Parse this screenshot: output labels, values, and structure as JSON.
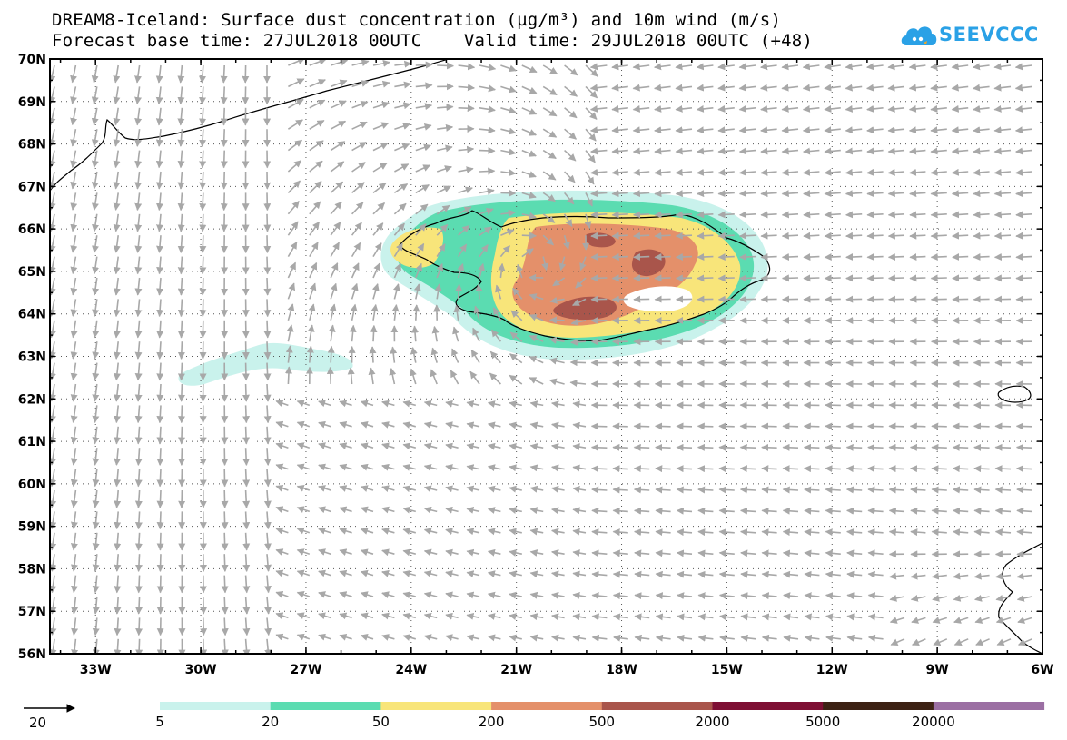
{
  "title": {
    "line1": "DREAM8-Iceland: Surface dust concentration (µg/m³) and 10m wind (m/s)",
    "line2": "Forecast base time: 27JUL2018 00UTC    Valid time: 29JUL2018 00UTC (+48)"
  },
  "logo": {
    "text": "SEEVCCC",
    "color": "#2aa1e6",
    "icon": "cloud-logo-icon"
  },
  "axes": {
    "lat_labels": [
      "70N",
      "69N",
      "68N",
      "67N",
      "66N",
      "65N",
      "64N",
      "63N",
      "62N",
      "61N",
      "60N",
      "59N",
      "58N",
      "57N",
      "56N"
    ],
    "lon_labels": [
      "33W",
      "30W",
      "27W",
      "24W",
      "21W",
      "18W",
      "15W",
      "12W",
      "9W",
      "6W"
    ],
    "lat_range": [
      56,
      70
    ],
    "lon_range": [
      -34.3,
      -6
    ]
  },
  "wind_reference": {
    "label": "20",
    "icon": "reference-arrow-icon"
  },
  "legend": {
    "labels": [
      "5",
      "20",
      "50",
      "200",
      "500",
      "2000",
      "5000",
      "20000"
    ],
    "colors": [
      "#c9f2ec",
      "#5bdcb1",
      "#f8e57a",
      "#e4906a",
      "#a9554b",
      "#7e0f34",
      "#3d2214",
      "#9b6fa3"
    ]
  },
  "colors": {
    "wind_arrow": "#a8a8a8",
    "coastline": "#000000",
    "grid": "#555555"
  }
}
